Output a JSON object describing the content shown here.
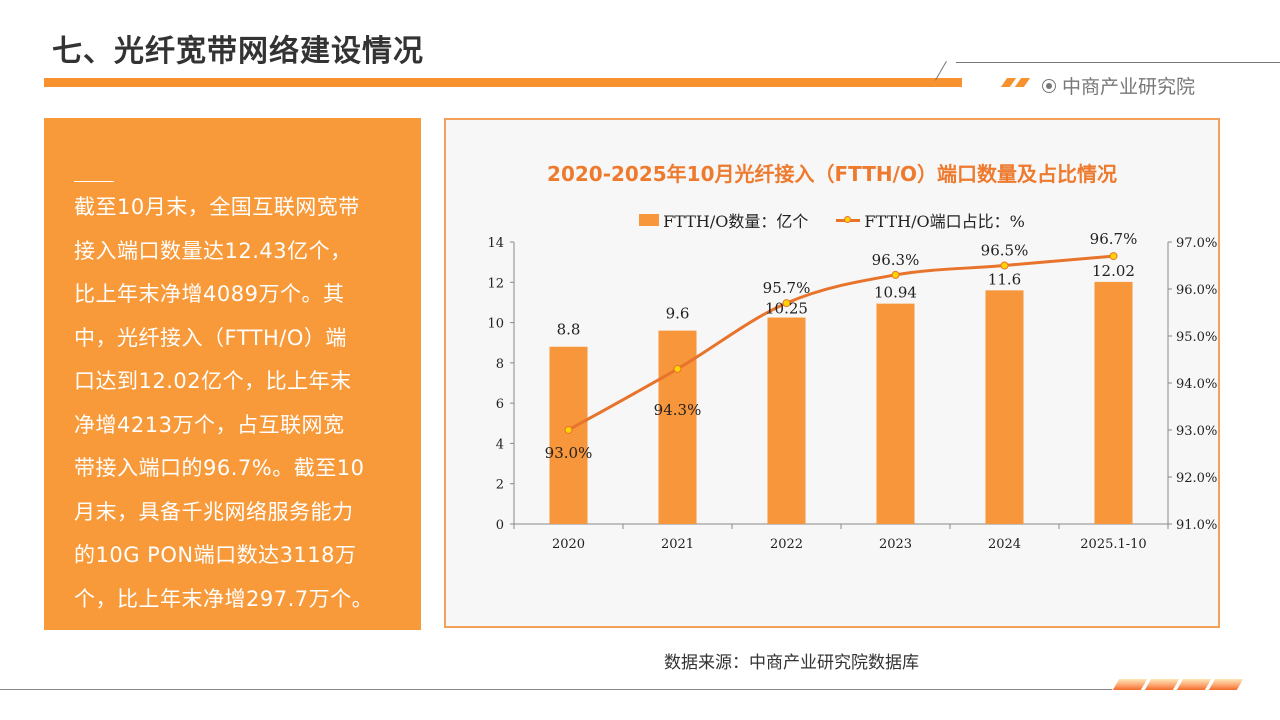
{
  "header": {
    "title": "七、光纤宽带网络建设情况",
    "brand": "中商产业研究院",
    "brand_icon": "target-circle-icon"
  },
  "summary": {
    "text": "截至10月末，全国互联网宽带接入端口数量达12.43亿个，比上年末净增4089万个。其中，光纤接入（FTTH/O）端口达到12.02亿个，比上年末净增4213万个，占互联网宽带接入端口的96.7%。截至10月末，具备千兆网络服务能力的10G PON端口数达3118万个，比上年末净增297.7万个。",
    "lines": [
      "截至10月末，全国互联网宽带",
      "接入端口数量达12.43亿个，",
      "比上年末净增4089万个。其",
      "中，光纤接入（FTTH/O）端",
      "口达到12.02亿个，比上年末",
      "净增4213万个，占互联网宽",
      "带接入端口的96.7%。截至10",
      "月末，具备千兆网络服务能力",
      "的10G PON端口数达3118万",
      "个，比上年末净增297.7万个。"
    ]
  },
  "colors": {
    "accent": "#F7922F",
    "bar": "#F7963A",
    "line": "#E8742C",
    "marker": "#FFD400",
    "title": "#EE7A2E"
  },
  "chart_data": {
    "type": "bar",
    "title": "2020-2025年10月光纤接入（FTTH/O）端口数量及占比情况",
    "categories": [
      "2020",
      "2021",
      "2022",
      "2023",
      "2024",
      "2025.1-10"
    ],
    "series": [
      {
        "name": "FTTH/O数量：亿个",
        "type": "bar",
        "axis": "left",
        "values": [
          8.8,
          9.6,
          10.25,
          10.94,
          11.6,
          12.02
        ],
        "labels": [
          "8.8",
          "9.6",
          "10.25",
          "10.94",
          "11.6",
          "12.02"
        ]
      },
      {
        "name": "FTTH/O端口占比：%",
        "type": "line",
        "axis": "right",
        "values": [
          93.0,
          94.3,
          95.7,
          96.3,
          96.5,
          96.7
        ],
        "labels": [
          "93.0%",
          "94.3%",
          "95.7%",
          "96.3%",
          "96.5%",
          "96.7%"
        ]
      }
    ],
    "y_left": {
      "range": [
        0,
        14
      ],
      "ticks": [
        "0",
        "2",
        "4",
        "6",
        "8",
        "10",
        "12",
        "14"
      ]
    },
    "y_right": {
      "range": [
        91,
        97
      ],
      "ticks": [
        "91.0%",
        "92.0%",
        "93.0%",
        "94.0%",
        "95.0%",
        "96.0%",
        "97.0%"
      ]
    },
    "xlabel": "",
    "ylabel": "",
    "grid": false,
    "legend_position": "top-center"
  },
  "footer": {
    "source": "数据来源：中商产业研究院数据库"
  }
}
